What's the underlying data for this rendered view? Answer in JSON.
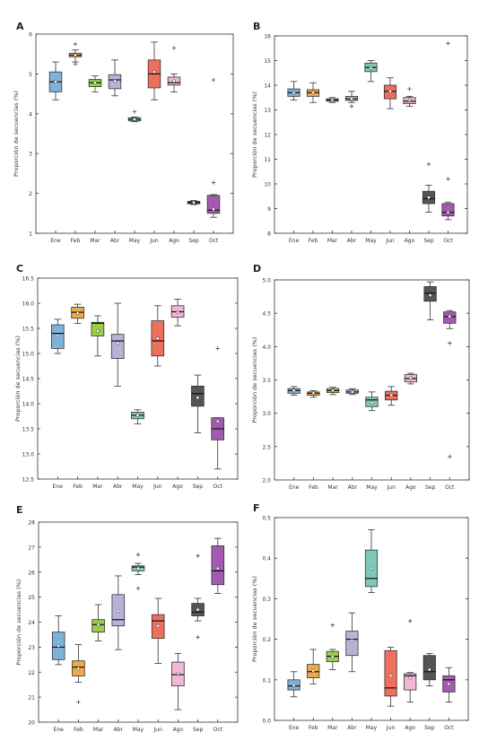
{
  "chart_data": [
    {
      "panel": "A",
      "type": "box",
      "ylabel": "Proporción de secuencias (%)",
      "ylim": [
        1,
        6
      ],
      "yticks": [
        "1",
        "2",
        "3",
        "4",
        "5",
        "6"
      ],
      "categories": [
        "Ene",
        "Feb",
        "Mar",
        "Abr",
        "May",
        "Jun",
        "Ago",
        "Sep",
        "Oct"
      ],
      "boxes": [
        {
          "color": "#7fb2d9",
          "wlo": 4.35,
          "q1": 4.55,
          "med": 4.8,
          "q3": 5.05,
          "whi": 5.3,
          "mean": 4.8,
          "outliers": []
        },
        {
          "color": "#f0a94a",
          "wlo": 5.3,
          "q1": 5.43,
          "med": 5.47,
          "q3": 5.52,
          "whi": 5.6,
          "mean": 5.47,
          "outliers": [
            5.75,
            5.25
          ]
        },
        {
          "color": "#9bcc4a",
          "wlo": 4.55,
          "q1": 4.68,
          "med": 4.78,
          "q3": 4.86,
          "whi": 4.95,
          "mean": 4.78,
          "outliers": []
        },
        {
          "color": "#b9b2d8",
          "wlo": 4.45,
          "q1": 4.63,
          "med": 4.85,
          "q3": 4.98,
          "whi": 5.35,
          "mean": 4.82,
          "outliers": []
        },
        {
          "color": "#7fc7b8",
          "wlo": 3.8,
          "q1": 3.82,
          "med": 3.86,
          "q3": 3.9,
          "whi": 3.92,
          "mean": 3.86,
          "outliers": [
            4.05
          ]
        },
        {
          "color": "#ef6f5e",
          "wlo": 4.35,
          "q1": 4.65,
          "med": 5.0,
          "q3": 5.35,
          "whi": 5.8,
          "mean": 5.05,
          "outliers": []
        },
        {
          "color": "#f2b6d6",
          "wlo": 4.55,
          "q1": 4.72,
          "med": 4.78,
          "q3": 4.92,
          "whi": 5.0,
          "mean": 4.82,
          "outliers": [
            5.65
          ]
        },
        {
          "color": "#555555",
          "wlo": 1.72,
          "q1": 1.74,
          "med": 1.77,
          "q3": 1.8,
          "whi": 1.82,
          "mean": 1.77,
          "outliers": []
        },
        {
          "color": "#a35ab0",
          "wlo": 1.4,
          "q1": 1.5,
          "med": 1.58,
          "q3": 1.95,
          "whi": 1.97,
          "mean": 1.6,
          "outliers": [
            4.85,
            2.27
          ]
        }
      ]
    },
    {
      "panel": "B",
      "type": "box",
      "ylabel": "Proporción de secuencias (%)",
      "ylim": [
        8,
        16
      ],
      "yticks": [
        "8",
        "9",
        "10",
        "11",
        "12",
        "13",
        "14",
        "15",
        "16"
      ],
      "categories": [
        "Ene",
        "Feb",
        "Mar",
        "Abr",
        "May",
        "Jun",
        "Ago",
        "Sep",
        "Oct"
      ],
      "boxes": [
        {
          "color": "#7fb2d9",
          "wlo": 13.4,
          "q1": 13.55,
          "med": 13.7,
          "q3": 13.85,
          "whi": 14.15,
          "mean": 13.7,
          "outliers": []
        },
        {
          "color": "#f0a94a",
          "wlo": 13.3,
          "q1": 13.55,
          "med": 13.7,
          "q3": 13.82,
          "whi": 14.1,
          "mean": 13.7,
          "outliers": []
        },
        {
          "color": "#9bcc4a",
          "wlo": 13.3,
          "q1": 13.35,
          "med": 13.4,
          "q3": 13.45,
          "whi": 13.5,
          "mean": 13.4,
          "outliers": []
        },
        {
          "color": "#b9b2d8",
          "wlo": 13.3,
          "q1": 13.38,
          "med": 13.45,
          "q3": 13.55,
          "whi": 13.75,
          "mean": 13.45,
          "outliers": [
            13.15
          ]
        },
        {
          "color": "#7fc7b8",
          "wlo": 14.15,
          "q1": 14.55,
          "med": 14.72,
          "q3": 14.9,
          "whi": 15.0,
          "mean": 14.7,
          "outliers": []
        },
        {
          "color": "#ef6f5e",
          "wlo": 13.05,
          "q1": 13.45,
          "med": 13.75,
          "q3": 14.0,
          "whi": 14.3,
          "mean": 13.75,
          "outliers": []
        },
        {
          "color": "#f2b6d6",
          "wlo": 13.15,
          "q1": 13.25,
          "med": 13.35,
          "q3": 13.5,
          "whi": 13.55,
          "mean": 13.4,
          "outliers": [
            13.85
          ]
        },
        {
          "color": "#555555",
          "wlo": 8.85,
          "q1": 9.2,
          "med": 9.4,
          "q3": 9.7,
          "whi": 9.95,
          "mean": 9.45,
          "outliers": [
            10.8
          ]
        },
        {
          "color": "#a35ab0",
          "wlo": 8.55,
          "q1": 8.7,
          "med": 8.85,
          "q3": 9.2,
          "whi": 9.25,
          "mean": 8.85,
          "outliers": [
            15.7,
            10.2
          ]
        }
      ]
    },
    {
      "panel": "C",
      "type": "box",
      "ylabel": "Proporción de secuencias (%)",
      "ylim": [
        12.5,
        16.5
      ],
      "yticks": [
        "12.5",
        "13.0",
        "13.5",
        "14.0",
        "14.5",
        "15.0",
        "15.5",
        "16.0",
        "16.5"
      ],
      "categories": [
        "Ene",
        "Feb",
        "Mar",
        "Abr",
        "May",
        "Jun",
        "Ago",
        "Sep",
        "Oct"
      ],
      "boxes": [
        {
          "color": "#7fb2d9",
          "wlo": 15.0,
          "q1": 15.1,
          "med": 15.4,
          "q3": 15.57,
          "whi": 15.68,
          "mean": 15.35,
          "outliers": []
        },
        {
          "color": "#f0a94a",
          "wlo": 15.6,
          "q1": 15.7,
          "med": 15.82,
          "q3": 15.92,
          "whi": 15.98,
          "mean": 15.8,
          "outliers": []
        },
        {
          "color": "#9bcc4a",
          "wlo": 14.95,
          "q1": 15.35,
          "med": 15.6,
          "q3": 15.62,
          "whi": 15.75,
          "mean": 15.45,
          "outliers": []
        },
        {
          "color": "#b9b2d8",
          "wlo": 14.35,
          "q1": 14.9,
          "med": 15.25,
          "q3": 15.38,
          "whi": 16.0,
          "mean": 15.2,
          "outliers": []
        },
        {
          "color": "#7fc7b8",
          "wlo": 13.6,
          "q1": 13.7,
          "med": 13.77,
          "q3": 13.83,
          "whi": 13.88,
          "mean": 13.77,
          "outliers": []
        },
        {
          "color": "#ef6f5e",
          "wlo": 14.75,
          "q1": 14.95,
          "med": 15.25,
          "q3": 15.65,
          "whi": 15.95,
          "mean": 15.3,
          "outliers": []
        },
        {
          "color": "#f2b6d6",
          "wlo": 15.55,
          "q1": 15.72,
          "med": 15.83,
          "q3": 15.95,
          "whi": 16.08,
          "mean": 15.82,
          "outliers": []
        },
        {
          "color": "#555555",
          "wlo": 13.42,
          "q1": 13.95,
          "med": 14.2,
          "q3": 14.35,
          "whi": 14.57,
          "mean": 14.12,
          "outliers": []
        },
        {
          "color": "#a35ab0",
          "wlo": 12.7,
          "q1": 13.28,
          "med": 13.5,
          "q3": 13.72,
          "whi": 13.72,
          "mean": 13.65,
          "outliers": [
            15.1
          ]
        }
      ]
    },
    {
      "panel": "D",
      "type": "box",
      "ylabel": "Proporción de secuencias (%)",
      "ylim": [
        2.0,
        5.0
      ],
      "yticks": [
        "2.0",
        "2.5",
        "3.0",
        "3.5",
        "4.0",
        "4.5",
        "5.0"
      ],
      "categories": [
        "Ene",
        "Feb",
        "Mar",
        "Abr",
        "May",
        "Jun",
        "Ago",
        "Sep",
        "Oct"
      ],
      "boxes": [
        {
          "color": "#7fb2d9",
          "wlo": 3.27,
          "q1": 3.3,
          "med": 3.34,
          "q3": 3.37,
          "whi": 3.4,
          "mean": 3.34,
          "outliers": []
        },
        {
          "color": "#f0a94a",
          "wlo": 3.24,
          "q1": 3.27,
          "med": 3.3,
          "q3": 3.32,
          "whi": 3.34,
          "mean": 3.3,
          "outliers": []
        },
        {
          "color": "#9bcc4a",
          "wlo": 3.28,
          "q1": 3.31,
          "med": 3.34,
          "q3": 3.37,
          "whi": 3.39,
          "mean": 3.34,
          "outliers": []
        },
        {
          "color": "#b9b2d8",
          "wlo": 3.28,
          "q1": 3.3,
          "med": 3.32,
          "q3": 3.35,
          "whi": 3.37,
          "mean": 3.32,
          "outliers": []
        },
        {
          "color": "#7fc7b8",
          "wlo": 3.04,
          "q1": 3.1,
          "med": 3.2,
          "q3": 3.24,
          "whi": 3.32,
          "mean": 3.16,
          "outliers": []
        },
        {
          "color": "#ef6f5e",
          "wlo": 3.12,
          "q1": 3.2,
          "med": 3.27,
          "q3": 3.33,
          "whi": 3.4,
          "mean": 3.27,
          "outliers": []
        },
        {
          "color": "#f2b6d6",
          "wlo": 3.44,
          "q1": 3.47,
          "med": 3.52,
          "q3": 3.58,
          "whi": 3.6,
          "mean": 3.53,
          "outliers": []
        },
        {
          "color": "#555555",
          "wlo": 4.4,
          "q1": 4.68,
          "med": 4.8,
          "q3": 4.9,
          "whi": 4.97,
          "mean": 4.77,
          "outliers": []
        },
        {
          "color": "#a35ab0",
          "wlo": 4.27,
          "q1": 4.35,
          "med": 4.45,
          "q3": 4.52,
          "whi": 4.54,
          "mean": 4.45,
          "outliers": [
            4.05,
            2.35
          ]
        }
      ]
    },
    {
      "panel": "E",
      "type": "box",
      "ylabel": "Proporción de secuencias (%)",
      "ylim": [
        20,
        28
      ],
      "yticks": [
        "20",
        "21",
        "22",
        "23",
        "24",
        "25",
        "26",
        "27",
        "28"
      ],
      "categories": [
        "Ene",
        "Feb",
        "Mar",
        "Abr",
        "May",
        "Jun",
        "Ago",
        "Sep",
        "Oct"
      ],
      "boxes": [
        {
          "color": "#7fb2d9",
          "wlo": 22.3,
          "q1": 22.5,
          "med": 23.0,
          "q3": 23.6,
          "whi": 24.25,
          "mean": 23.05,
          "outliers": []
        },
        {
          "color": "#f0a94a",
          "wlo": 21.6,
          "q1": 21.85,
          "med": 22.2,
          "q3": 22.45,
          "whi": 23.1,
          "mean": 22.15,
          "outliers": [
            20.8
          ]
        },
        {
          "color": "#9bcc4a",
          "wlo": 23.25,
          "q1": 23.6,
          "med": 23.9,
          "q3": 24.1,
          "whi": 24.7,
          "mean": 23.9,
          "outliers": []
        },
        {
          "color": "#b9b2d8",
          "wlo": 22.9,
          "q1": 23.85,
          "med": 24.1,
          "q3": 25.1,
          "whi": 25.85,
          "mean": 24.45,
          "outliers": []
        },
        {
          "color": "#7fc7b8",
          "wlo": 25.9,
          "q1": 26.05,
          "med": 26.2,
          "q3": 26.25,
          "whi": 26.35,
          "mean": 26.15,
          "outliers": [
            26.7,
            25.35
          ]
        },
        {
          "color": "#ef6f5e",
          "wlo": 22.35,
          "q1": 23.35,
          "med": 24.05,
          "q3": 24.3,
          "whi": 24.95,
          "mean": 23.85,
          "outliers": []
        },
        {
          "color": "#f2b6d6",
          "wlo": 20.5,
          "q1": 21.45,
          "med": 21.9,
          "q3": 22.4,
          "whi": 22.75,
          "mean": 21.95,
          "outliers": []
        },
        {
          "color": "#555555",
          "wlo": 24.05,
          "q1": 24.25,
          "med": 24.4,
          "q3": 24.75,
          "whi": 24.95,
          "mean": 24.5,
          "outliers": [
            26.65,
            23.4
          ]
        },
        {
          "color": "#a35ab0",
          "wlo": 25.15,
          "q1": 25.5,
          "med": 26.05,
          "q3": 27.05,
          "whi": 27.35,
          "mean": 26.15,
          "outliers": []
        }
      ]
    },
    {
      "panel": "F",
      "type": "box",
      "ylabel": "Proporción de secuencias (%)",
      "ylim": [
        0.0,
        0.5
      ],
      "yticks": [
        "0.0",
        "0.1",
        "0.2",
        "0.3",
        "0.4",
        "0.5"
      ],
      "categories": [
        "Ene",
        "Feb",
        "Mar",
        "Abr",
        "May",
        "Jun",
        "Ago",
        "Sep",
        "Oct"
      ],
      "boxes": [
        {
          "color": "#7fb2d9",
          "wlo": 0.058,
          "q1": 0.075,
          "med": 0.085,
          "q3": 0.1,
          "whi": 0.12,
          "mean": 0.087,
          "outliers": []
        },
        {
          "color": "#f0a94a",
          "wlo": 0.09,
          "q1": 0.105,
          "med": 0.12,
          "q3": 0.138,
          "whi": 0.175,
          "mean": 0.122,
          "outliers": []
        },
        {
          "color": "#9bcc4a",
          "wlo": 0.125,
          "q1": 0.145,
          "med": 0.158,
          "q3": 0.17,
          "whi": 0.175,
          "mean": 0.158,
          "outliers": [
            0.235
          ]
        },
        {
          "color": "#b9b2d8",
          "wlo": 0.12,
          "q1": 0.16,
          "med": 0.2,
          "q3": 0.22,
          "whi": 0.265,
          "mean": 0.197,
          "outliers": []
        },
        {
          "color": "#7fc7b8",
          "wlo": 0.315,
          "q1": 0.33,
          "med": 0.35,
          "q3": 0.42,
          "whi": 0.47,
          "mean": 0.375,
          "outliers": []
        },
        {
          "color": "#ef6f5e",
          "wlo": 0.035,
          "q1": 0.06,
          "med": 0.08,
          "q3": 0.172,
          "whi": 0.18,
          "mean": 0.11,
          "outliers": []
        },
        {
          "color": "#f2b6d6",
          "wlo": 0.045,
          "q1": 0.075,
          "med": 0.11,
          "q3": 0.115,
          "whi": 0.118,
          "mean": 0.105,
          "outliers": [
            0.245
          ]
        },
        {
          "color": "#555555",
          "wlo": 0.085,
          "q1": 0.1,
          "med": 0.12,
          "q3": 0.16,
          "whi": 0.165,
          "mean": 0.125,
          "outliers": []
        },
        {
          "color": "#a35ab0",
          "wlo": 0.045,
          "q1": 0.07,
          "med": 0.1,
          "q3": 0.11,
          "whi": 0.13,
          "mean": 0.09,
          "outliers": []
        }
      ]
    }
  ]
}
